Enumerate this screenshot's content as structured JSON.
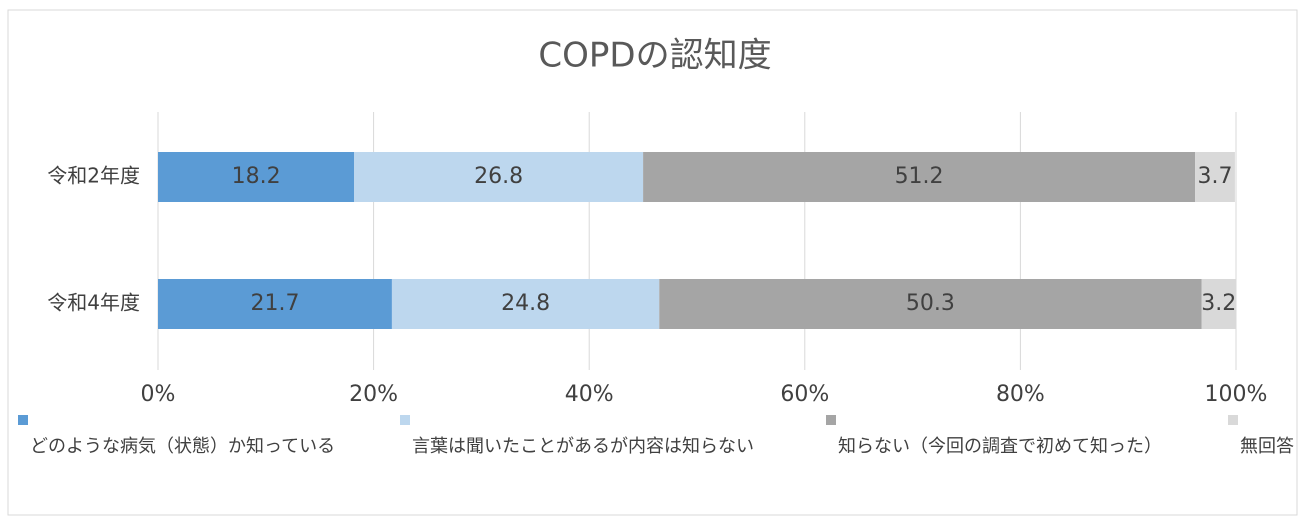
{
  "chart_data": {
    "type": "stacked_bar_horizontal",
    "title": "COPDの認知度",
    "categories": [
      "令和2年度",
      "令和4年度"
    ],
    "series": [
      {
        "name": "どのような病気（状態）か知っている",
        "color": "#5b9bd5",
        "values": [
          18.2,
          21.7
        ]
      },
      {
        "name": "言葉は聞いたことがあるが内容は知らない",
        "color": "#bdd7ee",
        "values": [
          26.8,
          24.8
        ]
      },
      {
        "name": "知らない（今回の調査で初めて知った）",
        "color": "#a5a5a5",
        "values": [
          51.2,
          50.3
        ]
      },
      {
        "name": "無回答",
        "color": "#d9d9d9",
        "values": [
          3.7,
          3.2
        ]
      }
    ],
    "xlim": [
      0,
      100
    ],
    "xticks": [
      {
        "value": 0,
        "label": "0%"
      },
      {
        "value": 20,
        "label": "20%"
      },
      {
        "value": 40,
        "label": "40%"
      },
      {
        "value": 60,
        "label": "60%"
      },
      {
        "value": 80,
        "label": "80%"
      },
      {
        "value": 100,
        "label": "100%"
      }
    ],
    "grid": true
  }
}
